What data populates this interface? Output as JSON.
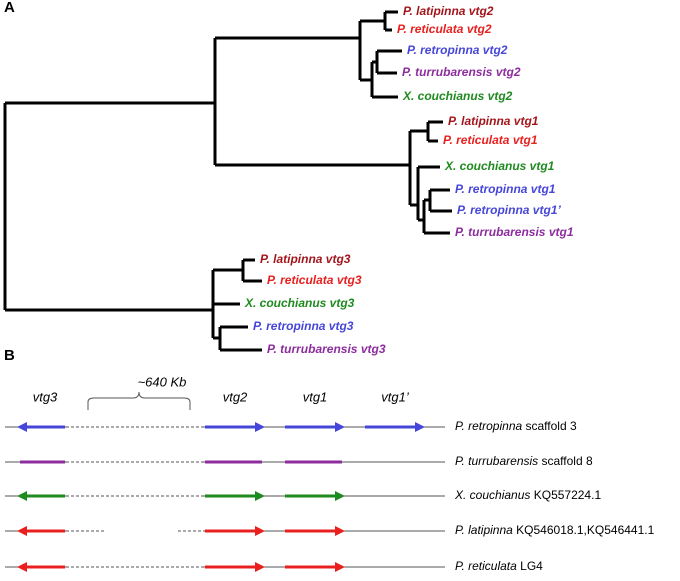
{
  "panel_a": {
    "label": "A",
    "leaves": [
      {
        "label": "P. latipinna vtg2",
        "color": "#a3151b"
      },
      {
        "label": "P. reticulata vtg2",
        "color": "#e8201f"
      },
      {
        "label": "P. retropinna vtg2",
        "color": "#4646d8"
      },
      {
        "label": "P. turrubarensis vtg2",
        "color": "#8d2c9e"
      },
      {
        "label": "X. couchianus vtg2",
        "color": "#1f8a1f"
      },
      {
        "label": "P. latipinna vtg1",
        "color": "#a3151b"
      },
      {
        "label": "P. reticulata vtg1",
        "color": "#e8201f"
      },
      {
        "label": "X. couchianus vtg1",
        "color": "#1f8a1f"
      },
      {
        "label": "P. retropinna vtg1",
        "color": "#4646d8"
      },
      {
        "label": "P. retropinna vtg1’",
        "color": "#4646d8"
      },
      {
        "label": "P. turrubarensis vtg1",
        "color": "#8d2c9e"
      },
      {
        "label": "P. latipinna vtg3",
        "color": "#a3151b"
      },
      {
        "label": "P. reticulata vtg3",
        "color": "#e8201f"
      },
      {
        "label": "X. couchianus vtg3",
        "color": "#1f8a1f"
      },
      {
        "label": "P. retropinna vtg3",
        "color": "#4646d8"
      },
      {
        "label": "P. turrubarensis vtg3",
        "color": "#8d2c9e"
      }
    ]
  },
  "panel_b": {
    "label": "B",
    "genes": [
      "vtg3",
      "vtg2",
      "vtg1",
      "vtg1’"
    ],
    "gap_label": "~640 Kb",
    "rows": [
      {
        "species": "P. retropinna",
        "rest": " scaffold 3",
        "color": "#4646d8"
      },
      {
        "species": "P. turrubarensis",
        "rest": " scaffold 8",
        "color": "#8d2c9e"
      },
      {
        "species": "X. couchianus",
        "rest": " KQ557224.1",
        "color": "#1f8a1f"
      },
      {
        "species": "P. latipinna",
        "rest": " KQ546018.1,KQ546441.1",
        "color": "#e8201f"
      },
      {
        "species": "P. reticulata",
        "rest": " LG4",
        "color": "#e8201f"
      }
    ]
  }
}
